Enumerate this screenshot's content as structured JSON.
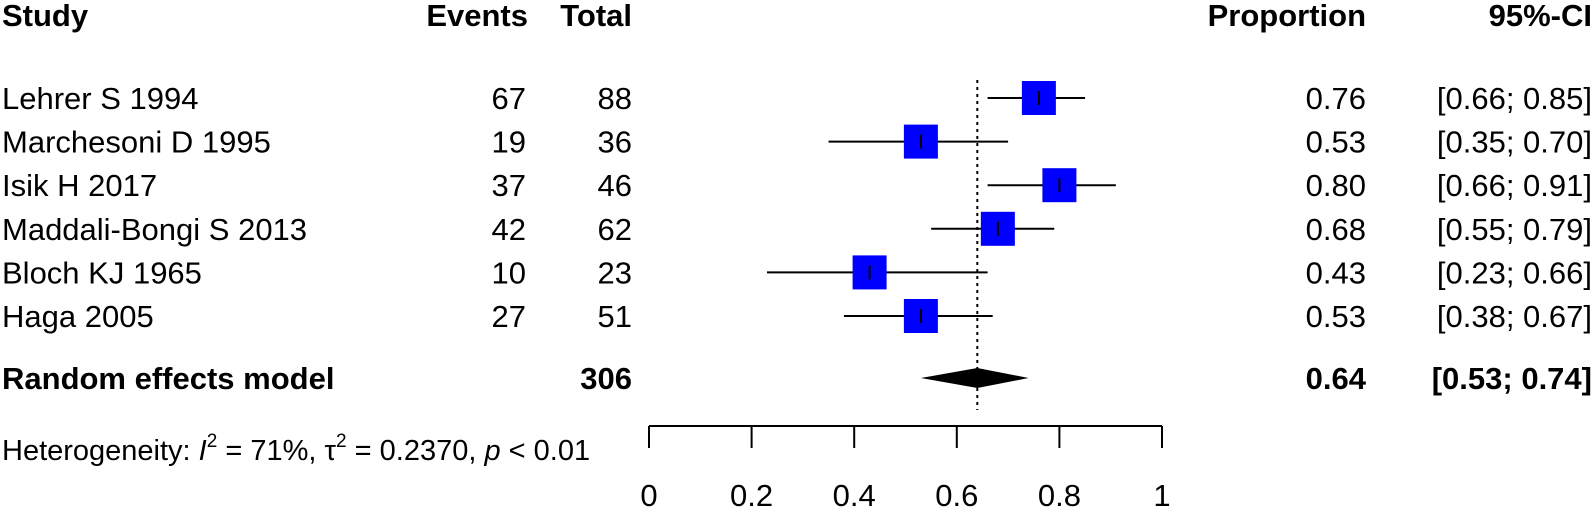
{
  "columns": {
    "study": "Study",
    "events": "Events",
    "total": "Total",
    "proportion": "Proportion",
    "ci": "95%-CI"
  },
  "colors": {
    "square": "#0000ff",
    "line": "#000000"
  },
  "pooled": {
    "label": "Random effects model",
    "total": "306",
    "proportion": "0.64",
    "ci": "[0.53; 0.74]"
  },
  "heterogeneity": {
    "prefix": "Heterogeneity: ",
    "i2_symbol": "I",
    "i2_value": " = 71%, ",
    "tau_symbol": "τ",
    "tau_value": " = 0.2370, ",
    "p_symbol": "p",
    "p_value": " < 0.01"
  },
  "chart_data": {
    "type": "forest",
    "reference_line": 0.64,
    "xlim": [
      0,
      1
    ],
    "ticks": [
      "0",
      "0.2",
      "0.4",
      "0.6",
      "0.8",
      "1"
    ],
    "tick_values": [
      0,
      0.2,
      0.4,
      0.6,
      0.8,
      1
    ],
    "studies": [
      {
        "study": "Lehrer S 1994",
        "events": "67",
        "total": "88",
        "proportion": "0.76",
        "ci": "[0.66; 0.85]",
        "est": 0.76,
        "lo": 0.66,
        "hi": 0.85,
        "weight": 1.0
      },
      {
        "study": "Marchesoni D 1995",
        "events": "19",
        "total": "36",
        "proportion": "0.53",
        "ci": "[0.35; 0.70]",
        "est": 0.53,
        "lo": 0.35,
        "hi": 0.7,
        "weight": 1.0
      },
      {
        "study": "Isik H 2017",
        "events": "37",
        "total": "46",
        "proportion": "0.80",
        "ci": "[0.66; 0.91]",
        "est": 0.8,
        "lo": 0.66,
        "hi": 0.91,
        "weight": 1.0
      },
      {
        "study": "Maddali-Bongi S 2013",
        "events": "42",
        "total": "62",
        "proportion": "0.68",
        "ci": "[0.55; 0.79]",
        "est": 0.68,
        "lo": 0.55,
        "hi": 0.79,
        "weight": 1.0
      },
      {
        "study": "Bloch KJ 1965",
        "events": "10",
        "total": "23",
        "proportion": "0.43",
        "ci": "[0.23; 0.66]",
        "est": 0.43,
        "lo": 0.23,
        "hi": 0.66,
        "weight": 1.0
      },
      {
        "study": "Haga 2005",
        "events": "27",
        "total": "51",
        "proportion": "0.53",
        "ci": "[0.38; 0.67]",
        "est": 0.53,
        "lo": 0.38,
        "hi": 0.67,
        "weight": 1.0
      }
    ],
    "summary": {
      "est": 0.64,
      "lo": 0.53,
      "hi": 0.74
    }
  }
}
